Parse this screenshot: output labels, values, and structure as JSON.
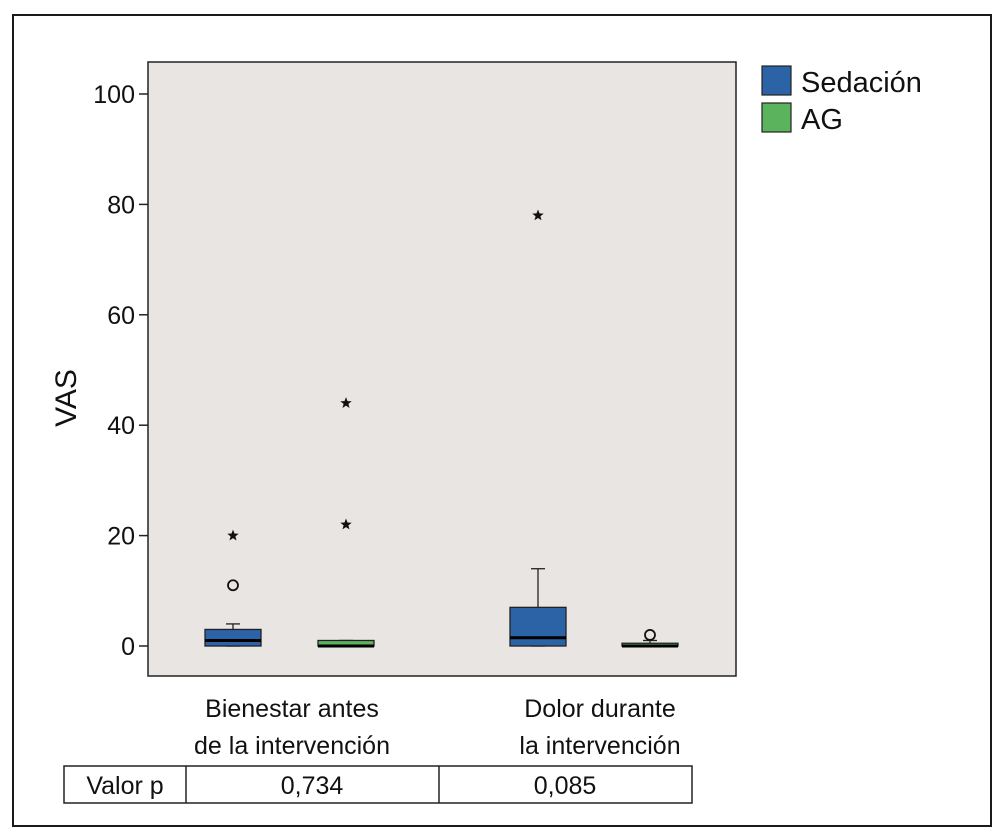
{
  "chart_data": {
    "type": "boxplot",
    "ylabel": "VAS",
    "xlabel": "",
    "ylim": [
      -5,
      105
    ],
    "yticks": [
      0,
      20,
      40,
      60,
      80,
      100
    ],
    "grid": false,
    "legend_position": "outside-top-right",
    "categories": [
      [
        "Bienestar antes",
        "de la intervención"
      ],
      [
        "Dolor durante",
        "la intervención"
      ]
    ],
    "series": [
      {
        "name": "Sedación",
        "color": "#2b63a6",
        "boxes": [
          {
            "min": 0,
            "q1": 0,
            "median": 1,
            "q3": 3,
            "max": 4,
            "outliers": [
              {
                "value": 11,
                "marker": "circle"
              },
              {
                "value": 20,
                "marker": "star"
              }
            ]
          },
          {
            "min": 0,
            "q1": 0,
            "median": 1.5,
            "q3": 7,
            "max": 14,
            "outliers": [
              {
                "value": 78,
                "marker": "star"
              }
            ]
          }
        ]
      },
      {
        "name": "AG",
        "color": "#5cb35e",
        "boxes": [
          {
            "min": 0,
            "q1": 0,
            "median": 0,
            "q3": 1,
            "max": 1,
            "outliers": [
              {
                "value": 22,
                "marker": "star"
              },
              {
                "value": 44,
                "marker": "star"
              }
            ]
          },
          {
            "min": 0,
            "q1": 0,
            "median": 0,
            "q3": 0.5,
            "max": 1,
            "outliers": [
              {
                "value": 2,
                "marker": "circle"
              }
            ]
          }
        ]
      }
    ],
    "table": {
      "row_label": "Valor p",
      "values": [
        "0,734",
        "0,085"
      ]
    }
  }
}
